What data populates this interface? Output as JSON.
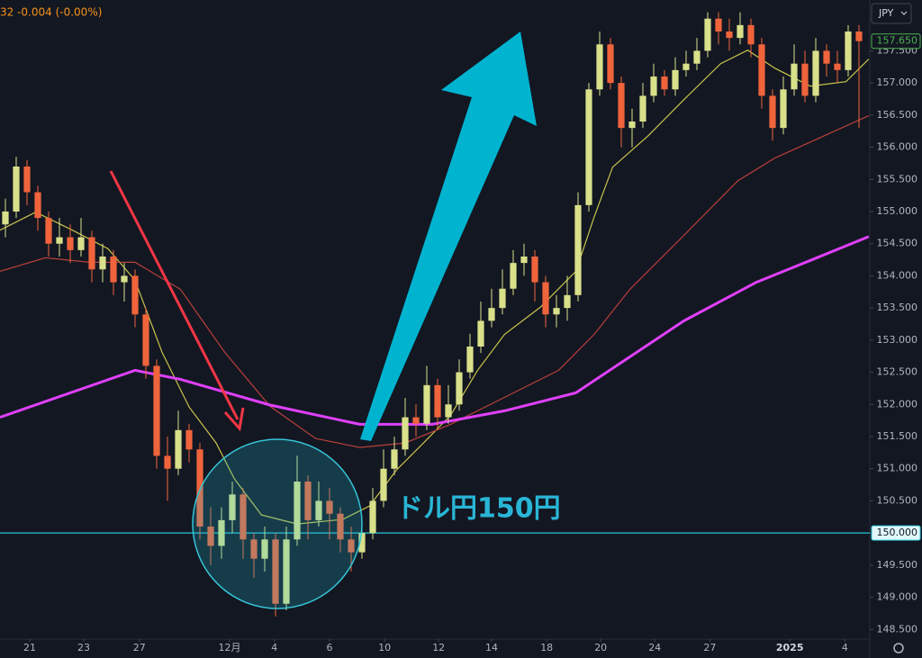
{
  "chart_data": {
    "type": "candlestick",
    "header": "32 -0.004 (-0.00%)",
    "currency_button": "JPY",
    "annotation": "ドル円150円",
    "ylim": [
      148.35,
      158.29
    ],
    "yticks": [
      {
        "value": 148.5,
        "label": "148.500"
      },
      {
        "value": 149,
        "label": "149.000"
      },
      {
        "value": 149.5,
        "label": "149.500"
      },
      {
        "value": 150,
        "label": "150.000"
      },
      {
        "value": 150.5,
        "label": "150.500"
      },
      {
        "value": 151,
        "label": "151.000"
      },
      {
        "value": 151.5,
        "label": "151.500"
      },
      {
        "value": 152,
        "label": "152.000"
      },
      {
        "value": 152.5,
        "label": "152.500"
      },
      {
        "value": 153,
        "label": "153.000"
      },
      {
        "value": 153.5,
        "label": "153.500"
      },
      {
        "value": 154,
        "label": "154.000"
      },
      {
        "value": 154.5,
        "label": "154.500"
      },
      {
        "value": 155,
        "label": "155.000"
      },
      {
        "value": 155.5,
        "label": "155.500"
      },
      {
        "value": 156,
        "label": "156.000"
      },
      {
        "value": 156.5,
        "label": "156.500"
      },
      {
        "value": 157,
        "label": "157.000"
      },
      {
        "value": 157.5,
        "label": "157.500"
      }
    ],
    "xlim": [
      -0.5,
      80
    ],
    "xticks": [
      {
        "value": 2.25,
        "label": "21"
      },
      {
        "value": 7.25,
        "label": "23"
      },
      {
        "value": 12.4,
        "label": "27"
      },
      {
        "value": 20.75,
        "label": "12月"
      },
      {
        "value": 24.9,
        "label": "4"
      },
      {
        "value": 30,
        "label": "6"
      },
      {
        "value": 35.1,
        "label": "10"
      },
      {
        "value": 40.1,
        "label": "12"
      },
      {
        "value": 45,
        "label": "14"
      },
      {
        "value": 50.1,
        "label": "18"
      },
      {
        "value": 55.1,
        "label": "20"
      },
      {
        "value": 60.1,
        "label": "24"
      },
      {
        "value": 65.2,
        "label": "27"
      },
      {
        "value": 72.6,
        "label": "2025"
      },
      {
        "value": 77.7,
        "label": "4"
      }
    ],
    "grid": false,
    "up_color": "#d9e08a",
    "down_color": "#f0643c",
    "open": [
      154.8,
      155.0,
      155.7,
      155.3,
      154.9,
      154.5,
      154.6,
      154.4,
      154.6,
      154.1,
      154.3,
      153.9,
      154.0,
      153.4,
      152.6,
      151.2,
      151.0,
      151.6,
      151.3,
      150.1,
      149.8,
      150.2,
      150.6,
      149.9,
      149.6,
      149.9,
      148.9,
      149.9,
      150.8,
      150.2,
      150.5,
      150.3,
      149.9,
      149.7,
      150.0,
      150.5,
      151.0,
      151.3,
      151.8,
      151.7,
      152.3,
      151.8,
      152.0,
      152.5,
      152.9,
      153.3,
      153.5,
      153.8,
      154.2,
      154.3,
      153.9,
      153.4,
      153.5,
      153.7,
      155.1,
      156.9,
      157.6,
      157.0,
      156.3,
      156.4,
      156.8,
      157.1,
      156.9,
      157.2,
      157.3,
      157.5,
      158.0,
      157.8,
      157.7,
      157.9,
      157.6,
      156.8,
      156.3,
      156.9,
      157.3,
      156.8,
      157.5,
      157.3,
      157.2,
      157.8
    ],
    "high": [
      155.2,
      155.85,
      155.8,
      155.4,
      155.0,
      154.9,
      154.8,
      154.9,
      154.7,
      154.5,
      154.4,
      154.2,
      154.1,
      153.5,
      152.7,
      151.5,
      151.9,
      151.7,
      151.4,
      150.4,
      150.4,
      150.8,
      150.7,
      150.0,
      150.1,
      150.0,
      150.1,
      151.2,
      150.9,
      150.8,
      150.7,
      150.4,
      150.1,
      150.1,
      150.7,
      151.3,
      151.5,
      152.1,
      152.0,
      152.6,
      152.4,
      152.3,
      152.7,
      153.1,
      153.6,
      153.8,
      154.1,
      154.4,
      154.5,
      154.4,
      154.0,
      153.7,
      154.0,
      155.3,
      157.0,
      157.8,
      157.7,
      157.1,
      156.6,
      157.0,
      157.3,
      157.2,
      157.4,
      157.5,
      157.7,
      158.1,
      158.1,
      158.0,
      158.1,
      158.0,
      157.7,
      156.9,
      157.1,
      157.6,
      157.5,
      157.7,
      157.6,
      157.5,
      157.9,
      157.9
    ],
    "low": [
      154.6,
      154.9,
      155.1,
      154.7,
      154.3,
      154.3,
      154.2,
      154.3,
      153.9,
      153.9,
      153.7,
      153.6,
      153.2,
      152.4,
      151.0,
      150.5,
      150.9,
      151.1,
      149.9,
      149.5,
      149.6,
      150.0,
      149.6,
      149.3,
      149.4,
      148.7,
      148.8,
      149.8,
      149.9,
      150.1,
      149.9,
      149.7,
      149.4,
      149.6,
      149.9,
      150.4,
      150.9,
      151.2,
      151.5,
      151.6,
      151.6,
      151.7,
      151.9,
      152.4,
      152.8,
      153.2,
      153.4,
      153.7,
      154.0,
      153.6,
      153.2,
      153.2,
      153.3,
      153.6,
      155.0,
      156.8,
      156.9,
      156.0,
      156.0,
      156.3,
      156.7,
      156.8,
      156.8,
      157.1,
      157.2,
      157.4,
      157.6,
      157.5,
      157.6,
      157.4,
      156.6,
      156.1,
      156.2,
      156.8,
      156.7,
      156.7,
      157.1,
      157.0,
      157.1,
      156.3
    ],
    "close": [
      155.0,
      155.7,
      155.3,
      154.9,
      154.5,
      154.6,
      154.4,
      154.6,
      154.1,
      154.3,
      153.9,
      154.0,
      153.4,
      152.6,
      151.2,
      151.0,
      151.6,
      151.3,
      150.1,
      149.8,
      150.2,
      150.6,
      149.9,
      149.6,
      149.9,
      148.9,
      149.9,
      150.8,
      150.2,
      150.5,
      150.3,
      149.9,
      149.7,
      150.0,
      150.5,
      151.0,
      151.3,
      151.8,
      151.7,
      152.3,
      151.8,
      152.0,
      152.5,
      152.9,
      153.3,
      153.5,
      153.8,
      154.2,
      154.3,
      153.9,
      153.4,
      153.5,
      153.7,
      155.1,
      156.9,
      157.6,
      157.0,
      156.3,
      156.4,
      156.8,
      157.1,
      156.9,
      157.2,
      157.3,
      157.5,
      158.0,
      157.8,
      157.7,
      157.9,
      157.6,
      156.8,
      156.3,
      156.9,
      157.3,
      156.8,
      157.5,
      157.3,
      157.2,
      157.8,
      157.65
    ],
    "last_price_label": "157.650",
    "level": {
      "value": 150,
      "label": "150.000",
      "color": "#26c6da"
    },
    "series": [
      {
        "color": "#c9c44a",
        "x": [
          -0.5,
          2.8,
          6.2,
          9.5,
          12,
          14.5,
          17,
          19.5,
          21.2,
          23.7,
          27,
          31.2,
          33.7,
          36.2,
          38.7,
          41.2,
          43.7,
          46.2,
          49.5,
          52.8,
          54.5,
          56.2,
          59.5,
          62.8,
          66.2,
          68.7,
          71.2,
          74.5,
          77.8,
          79.9
        ],
        "values": [
          154.71,
          154.99,
          154.71,
          154.42,
          153.93,
          152.81,
          151.96,
          151.4,
          150.84,
          150.28,
          150.14,
          150.21,
          150.42,
          150.98,
          151.4,
          151.83,
          152.53,
          153.09,
          153.51,
          154.07,
          154.92,
          155.69,
          156.18,
          156.74,
          157.3,
          157.51,
          157.23,
          156.95,
          157.02,
          157.37
        ]
      },
      {
        "color": "#b8403a",
        "x": [
          -0.5,
          3.7,
          7.8,
          12,
          16.2,
          20.3,
          24.5,
          28.7,
          32.8,
          37,
          41.2,
          46.2,
          51.2,
          54.5,
          57.8,
          62.8,
          67.8,
          71.2,
          76.2,
          79.9
        ],
        "values": [
          154.07,
          154.28,
          154.21,
          154.21,
          153.79,
          152.81,
          151.97,
          151.47,
          151.33,
          151.4,
          151.69,
          152.11,
          152.53,
          153.09,
          153.79,
          154.63,
          155.48,
          155.83,
          156.21,
          156.49
        ]
      },
      {
        "color": "#e040fb",
        "x": [
          -0.5,
          12,
          16.2,
          24.5,
          32.8,
          39.5,
          46.2,
          52.8,
          57.8,
          62.8,
          69.5,
          74.5,
          79.9
        ],
        "values": [
          151.8,
          152.53,
          152.39,
          151.99,
          151.69,
          151.69,
          151.9,
          152.18,
          152.74,
          153.3,
          153.9,
          154.24,
          154.61
        ]
      }
    ]
  }
}
